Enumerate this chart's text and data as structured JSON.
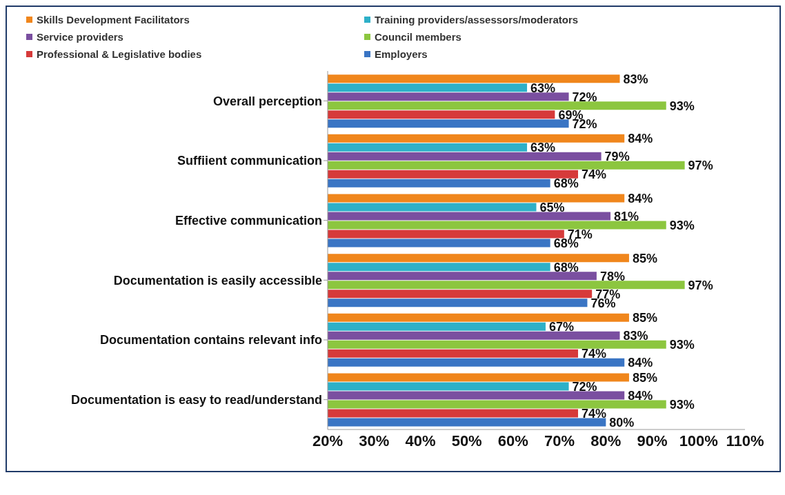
{
  "chart_data": {
    "type": "bar",
    "orientation": "horizontal",
    "legend": "top",
    "categories": [
      "Overall perception",
      "Suffiient communication",
      "Effective communication",
      "Documentation is easily accessible",
      "Documentation contains relevant info",
      "Documentation is easy to read/understand"
    ],
    "series": [
      {
        "name": "Skills Development Facilitators",
        "color": "#f0861c",
        "values": [
          83,
          84,
          84,
          85,
          85,
          85
        ],
        "value_labels": [
          "83%",
          "84%",
          "84%",
          "85%",
          "85%",
          "85%"
        ]
      },
      {
        "name": "Training providers/assessors/moderators",
        "color": "#2eb0c8",
        "values": [
          63,
          63,
          65,
          68,
          67,
          72
        ],
        "value_labels": [
          "63%",
          "63%",
          "65%",
          "68%",
          "67%",
          "72%"
        ]
      },
      {
        "name": "Service providers",
        "color": "#7a4fa0",
        "values": [
          72,
          79,
          81,
          78,
          83,
          84
        ],
        "value_labels": [
          "72%",
          "79%",
          "81%",
          "78%",
          "83%",
          "84%"
        ]
      },
      {
        "name": "Council members",
        "color": "#8cc63f",
        "values": [
          93,
          97,
          93,
          97,
          93,
          93
        ],
        "value_labels": [
          "93%",
          "97%",
          "93%",
          "97%",
          "93%",
          "93%"
        ]
      },
      {
        "name": "Professional & Legislative bodies",
        "color": "#d63a3a",
        "values": [
          69,
          74,
          71,
          77,
          74,
          74
        ],
        "value_labels": [
          "69%",
          "74%",
          "71%",
          "77%",
          "74%",
          "74%"
        ]
      },
      {
        "name": "Employers",
        "color": "#3a75c4",
        "values": [
          72,
          68,
          68,
          76,
          84,
          80
        ],
        "value_labels": [
          "72%",
          "68%",
          "68%",
          "76%",
          "84%",
          "80%"
        ]
      }
    ],
    "xlim": [
      20,
      110
    ],
    "xticks": [
      {
        "value": 20,
        "label": "20%"
      },
      {
        "value": 30,
        "label": "30%"
      },
      {
        "value": 40,
        "label": "40%"
      },
      {
        "value": 50,
        "label": "50%"
      },
      {
        "value": 60,
        "label": "60%"
      },
      {
        "value": 70,
        "label": "70%"
      },
      {
        "value": 80,
        "label": "80%"
      },
      {
        "value": 90,
        "label": "90%"
      },
      {
        "value": 100,
        "label": "100%"
      },
      {
        "value": 110,
        "label": "110%"
      }
    ]
  }
}
